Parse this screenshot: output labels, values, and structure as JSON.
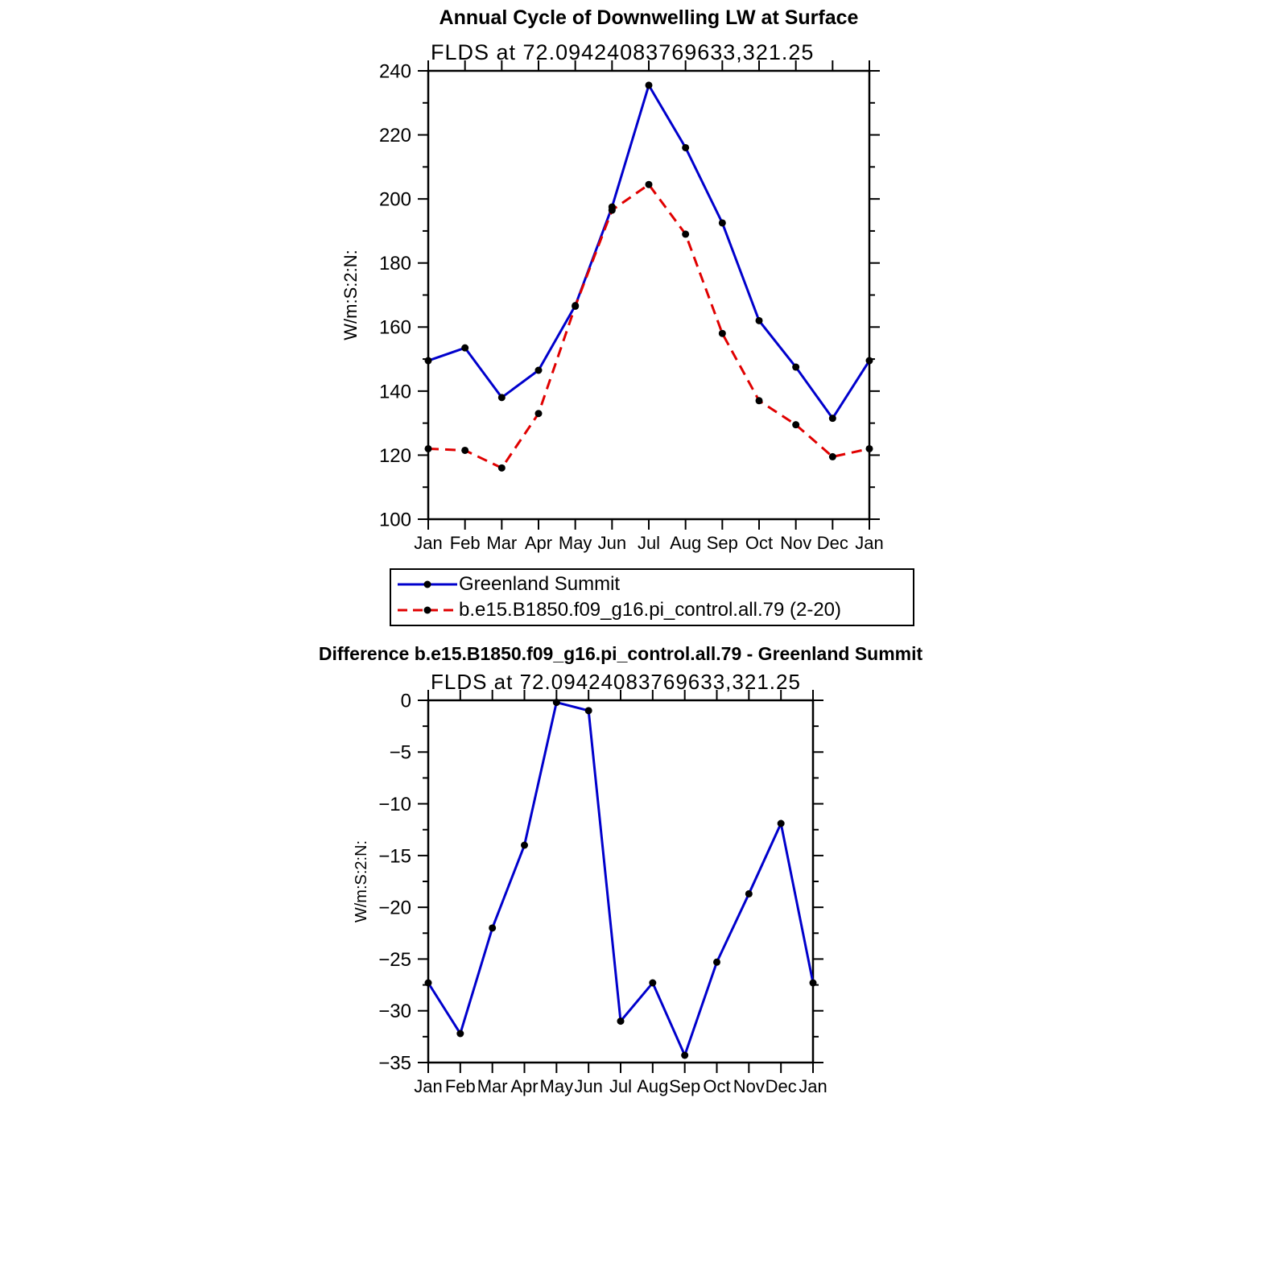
{
  "chart_data": [
    {
      "type": "line",
      "title": "Annual Cycle of Downwelling LW at Surface",
      "subtitle": "FLDS  at  72.09424083769633,321.25",
      "ylabel": "W/m:S:2:N:",
      "xlabel": "",
      "categories": [
        "Jan",
        "Feb",
        "Mar",
        "Apr",
        "May",
        "Jun",
        "Jul",
        "Aug",
        "Sep",
        "Oct",
        "Nov",
        "Dec",
        "Jan"
      ],
      "ylim": [
        100,
        240
      ],
      "ytick_step": 20,
      "ytick_minor_step": 10,
      "grid": false,
      "legend_position": "below",
      "marker": {
        "shape": "circle",
        "color": "#000000"
      },
      "series": [
        {
          "name": "Greenland Summit",
          "color": "#0000cc",
          "style": "solid",
          "values": [
            149.5,
            153.5,
            138,
            146.5,
            166.7,
            197.5,
            235.5,
            216,
            192.5,
            162,
            147.5,
            131.5,
            149.5
          ]
        },
        {
          "name": "b.e15.B1850.f09_g16.pi_control.all.79 (2-20)",
          "color": "#e00000",
          "style": "dashed",
          "values": [
            122,
            121.5,
            116,
            133,
            166.5,
            196.5,
            204.5,
            189,
            158,
            137,
            129.5,
            119.5,
            122
          ]
        }
      ]
    },
    {
      "type": "line",
      "title": "Difference b.e15.B1850.f09_g16.pi_control.all.79 - Greenland Summit",
      "subtitle": "FLDS  at  72.09424083769633,321.25",
      "ylabel": "W/m:S:2:N:",
      "xlabel": "",
      "categories": [
        "Jan",
        "Feb",
        "Mar",
        "Apr",
        "May",
        "Jun",
        "Jul",
        "Aug",
        "Sep",
        "Oct",
        "Nov",
        "Dec",
        "Jan"
      ],
      "ylim": [
        -35,
        0
      ],
      "ytick_step": 5,
      "ytick_minor_step": 2.5,
      "grid": false,
      "legend_position": "none",
      "marker": {
        "shape": "circle",
        "color": "#000000"
      },
      "series": [
        {
          "name": "Difference",
          "color": "#0000cc",
          "style": "solid",
          "values": [
            -27.3,
            -32.2,
            -22,
            -14,
            -0.2,
            -1,
            -31,
            -27.3,
            -34.3,
            -25.3,
            -18.7,
            -11.9,
            -27.3
          ]
        }
      ]
    }
  ]
}
